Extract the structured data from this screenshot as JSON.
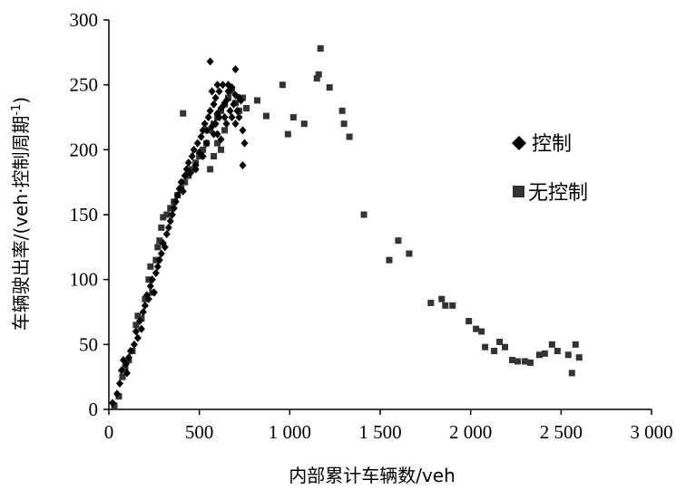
{
  "chart_data": {
    "type": "scatter",
    "xlabel": "内部累计车辆数/veh",
    "ylabel": "车辆驶出率/(veh·控制周期",
    "ylabel_sup": "-1",
    "ylabel_close": ")",
    "xlim": [
      0,
      3000
    ],
    "ylim": [
      0,
      300
    ],
    "x_ticks": [
      0,
      500,
      1000,
      1500,
      2000,
      2500,
      3000
    ],
    "x_tick_labels": [
      "0",
      "500",
      "1 000",
      "1 500",
      "2 000",
      "2 500",
      "3 000"
    ],
    "y_ticks": [
      0,
      50,
      100,
      150,
      200,
      250,
      300
    ],
    "y_tick_labels": [
      "0",
      "50",
      "100",
      "150",
      "200",
      "250",
      "300"
    ],
    "grid": false,
    "legend_position": "right",
    "series": [
      {
        "name": "控制",
        "marker": "diamond",
        "color": "#000000",
        "points": [
          [
            20,
            5
          ],
          [
            45,
            12
          ],
          [
            60,
            20
          ],
          [
            70,
            30
          ],
          [
            80,
            38
          ],
          [
            95,
            35
          ],
          [
            100,
            28
          ],
          [
            110,
            40
          ],
          [
            120,
            45
          ],
          [
            140,
            50
          ],
          [
            150,
            60
          ],
          [
            160,
            55
          ],
          [
            170,
            68
          ],
          [
            180,
            62
          ],
          [
            190,
            75
          ],
          [
            200,
            80
          ],
          [
            210,
            88
          ],
          [
            220,
            85
          ],
          [
            230,
            95
          ],
          [
            240,
            100
          ],
          [
            250,
            90
          ],
          [
            260,
            105
          ],
          [
            270,
            110
          ],
          [
            280,
            115
          ],
          [
            290,
            120
          ],
          [
            300,
            128
          ],
          [
            310,
            125
          ],
          [
            320,
            135
          ],
          [
            330,
            140
          ],
          [
            340,
            145
          ],
          [
            350,
            150
          ],
          [
            360,
            155
          ],
          [
            370,
            160
          ],
          [
            380,
            165
          ],
          [
            390,
            170
          ],
          [
            400,
            175
          ],
          [
            410,
            168
          ],
          [
            420,
            180
          ],
          [
            430,
            185
          ],
          [
            440,
            190
          ],
          [
            450,
            182
          ],
          [
            460,
            195
          ],
          [
            470,
            200
          ],
          [
            480,
            188
          ],
          [
            490,
            205
          ],
          [
            500,
            198
          ],
          [
            510,
            210
          ],
          [
            520,
            215
          ],
          [
            530,
            220
          ],
          [
            540,
            205
          ],
          [
            550,
            225
          ],
          [
            560,
            230
          ],
          [
            570,
            218
          ],
          [
            580,
            235
          ],
          [
            590,
            240
          ],
          [
            600,
            228
          ],
          [
            610,
            245
          ],
          [
            620,
            232
          ],
          [
            630,
            250
          ],
          [
            640,
            225
          ],
          [
            650,
            238
          ],
          [
            660,
            245
          ],
          [
            670,
            230
          ],
          [
            680,
            248
          ],
          [
            690,
            235
          ],
          [
            700,
            242
          ],
          [
            710,
            230
          ],
          [
            720,
            225
          ],
          [
            730,
            238
          ],
          [
            740,
            215
          ],
          [
            750,
            205
          ],
          [
            560,
            268
          ],
          [
            700,
            262
          ],
          [
            740,
            188
          ],
          [
            480,
            185
          ],
          [
            520,
            195
          ],
          [
            600,
            212
          ],
          [
            650,
            220
          ],
          [
            700,
            220
          ],
          [
            620,
            208
          ],
          [
            580,
            212
          ],
          [
            540,
            215
          ],
          [
            680,
            225
          ],
          [
            720,
            240
          ],
          [
            660,
            250
          ],
          [
            610,
            225
          ],
          [
            590,
            220
          ],
          [
            570,
            245
          ],
          [
            640,
            235
          ],
          [
            600,
            250
          ]
        ]
      },
      {
        "name": "无控制",
        "marker": "square",
        "color": "#333333",
        "points": [
          [
            30,
            3
          ],
          [
            55,
            10
          ],
          [
            75,
            25
          ],
          [
            90,
            32
          ],
          [
            110,
            38
          ],
          [
            130,
            45
          ],
          [
            150,
            65
          ],
          [
            160,
            72
          ],
          [
            180,
            70
          ],
          [
            200,
            85
          ],
          [
            220,
            100
          ],
          [
            230,
            110
          ],
          [
            240,
            90
          ],
          [
            260,
            115
          ],
          [
            270,
            125
          ],
          [
            280,
            130
          ],
          [
            290,
            140
          ],
          [
            300,
            148
          ],
          [
            320,
            150
          ],
          [
            340,
            155
          ],
          [
            360,
            160
          ],
          [
            380,
            165
          ],
          [
            400,
            170
          ],
          [
            420,
            175
          ],
          [
            440,
            180
          ],
          [
            460,
            185
          ],
          [
            480,
            190
          ],
          [
            500,
            195
          ],
          [
            520,
            200
          ],
          [
            540,
            205
          ],
          [
            560,
            215
          ],
          [
            580,
            220
          ],
          [
            600,
            225
          ],
          [
            620,
            230
          ],
          [
            640,
            235
          ],
          [
            660,
            240
          ],
          [
            680,
            245
          ],
          [
            700,
            236
          ],
          [
            720,
            230
          ],
          [
            740,
            240
          ],
          [
            600,
            205
          ],
          [
            620,
            200
          ],
          [
            640,
            215
          ],
          [
            580,
            195
          ],
          [
            560,
            185
          ],
          [
            410,
            228
          ],
          [
            760,
            232
          ],
          [
            820,
            238
          ],
          [
            870,
            226
          ],
          [
            960,
            250
          ],
          [
            990,
            212
          ],
          [
            1020,
            225
          ],
          [
            1080,
            220
          ],
          [
            1150,
            255
          ],
          [
            1170,
            278
          ],
          [
            1160,
            258
          ],
          [
            1220,
            248
          ],
          [
            1290,
            230
          ],
          [
            1300,
            220
          ],
          [
            1330,
            210
          ],
          [
            1410,
            150
          ],
          [
            1550,
            115
          ],
          [
            1600,
            130
          ],
          [
            1660,
            120
          ],
          [
            1780,
            82
          ],
          [
            1840,
            85
          ],
          [
            1860,
            80
          ],
          [
            1900,
            80
          ],
          [
            1990,
            68
          ],
          [
            2030,
            62
          ],
          [
            2060,
            60
          ],
          [
            2080,
            48
          ],
          [
            2130,
            45
          ],
          [
            2160,
            52
          ],
          [
            2190,
            48
          ],
          [
            2230,
            38
          ],
          [
            2260,
            37
          ],
          [
            2300,
            37
          ],
          [
            2330,
            36
          ],
          [
            2380,
            42
          ],
          [
            2410,
            43
          ],
          [
            2450,
            50
          ],
          [
            2480,
            45
          ],
          [
            2540,
            42
          ],
          [
            2560,
            28
          ],
          [
            2580,
            50
          ],
          [
            2600,
            40
          ]
        ]
      }
    ]
  }
}
